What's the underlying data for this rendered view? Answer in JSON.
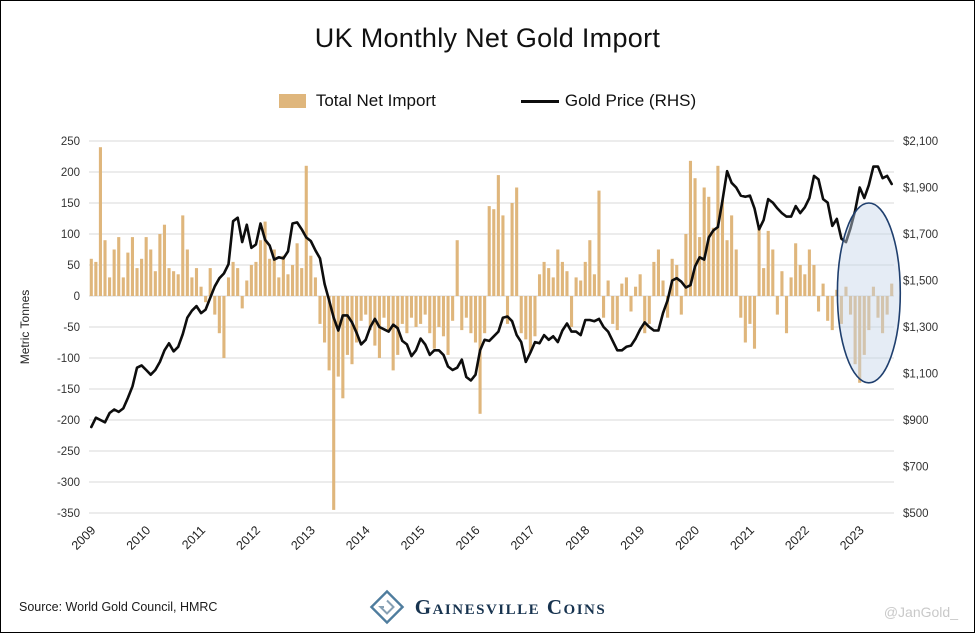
{
  "page": {
    "title": "UK Monthly Net Gold Import",
    "source": "Source: World Gold Council, HMRC",
    "watermark": "@JanGold_",
    "brand": "Gainesville Coins"
  },
  "legend": {
    "bars_label": "Total Net Import",
    "line_label": "Gold Price (RHS)"
  },
  "colors": {
    "bar": "#dfb67c",
    "line": "#0d0d0d",
    "gridline": "#d9d9d9",
    "tick_text": "#333333",
    "ellipse_stroke": "#1f3f6e",
    "ellipse_fill": "rgba(197,213,232,0.45)"
  },
  "chart_data": {
    "type": "bar",
    "title": "UK Monthly Net Gold Import",
    "subtitle": "",
    "ylabel_left": "Metric Tonnes",
    "ylabel_right": "",
    "grid": true,
    "legend_position": "top",
    "start_month": "2009-01",
    "end_month": "2023-08",
    "x_tick_years": [
      "2009",
      "2010",
      "2011",
      "2012",
      "2013",
      "2014",
      "2015",
      "2016",
      "2017",
      "2018",
      "2019",
      "2020",
      "2021",
      "2022",
      "2023"
    ],
    "left_axis": {
      "min": -350,
      "max": 250,
      "ticks": [
        250,
        200,
        150,
        100,
        50,
        0,
        -50,
        -100,
        -150,
        -200,
        -250,
        -300,
        -350
      ]
    },
    "right_axis": {
      "min": 500,
      "max": 2100,
      "tick_labels": [
        "$2,100",
        "$1,900",
        "$1,700",
        "$1,500",
        "$1,300",
        "$1,100",
        "$900",
        "$700",
        "$500"
      ]
    },
    "series": [
      {
        "name": "Total Net Import",
        "type": "bar",
        "axis": "left",
        "color": "#dfb67c",
        "values": [
          60,
          55,
          240,
          90,
          30,
          75,
          95,
          30,
          70,
          95,
          45,
          60,
          95,
          75,
          40,
          100,
          115,
          45,
          40,
          35,
          130,
          75,
          30,
          45,
          15,
          -10,
          45,
          -30,
          -60,
          -100,
          30,
          55,
          45,
          -20,
          25,
          50,
          55,
          90,
          120,
          60,
          75,
          30,
          65,
          35,
          50,
          85,
          45,
          210,
          65,
          30,
          -45,
          -75,
          -120,
          -345,
          -130,
          -165,
          -95,
          -110,
          -75,
          -40,
          -30,
          -55,
          -80,
          -100,
          -35,
          -55,
          -120,
          -95,
          -45,
          -60,
          -35,
          -50,
          -45,
          -30,
          -60,
          -85,
          -50,
          -65,
          -95,
          -40,
          90,
          -55,
          -35,
          -60,
          -75,
          -190,
          -60,
          145,
          140,
          195,
          130,
          -45,
          150,
          175,
          -60,
          -70,
          -90,
          -65,
          35,
          55,
          45,
          30,
          75,
          55,
          40,
          -50,
          30,
          25,
          55,
          90,
          35,
          170,
          -35,
          25,
          -45,
          -55,
          20,
          30,
          -25,
          15,
          35,
          -60,
          -45,
          55,
          75,
          25,
          -35,
          60,
          50,
          -30,
          100,
          218,
          190,
          95,
          175,
          160,
          110,
          210,
          155,
          90,
          130,
          75,
          -35,
          -75,
          -45,
          -85,
          110,
          45,
          105,
          75,
          -30,
          40,
          -60,
          30,
          85,
          50,
          35,
          75,
          50,
          -25,
          20,
          -40,
          -55,
          10,
          -45,
          15,
          -30,
          -110,
          -140,
          -95,
          -55,
          15,
          -35,
          -60,
          -30,
          20
        ]
      },
      {
        "name": "Gold Price (RHS)",
        "type": "line",
        "axis": "right",
        "color": "#0d0d0d",
        "values": [
          870,
          910,
          900,
          890,
          930,
          945,
          935,
          950,
          995,
          1045,
          1125,
          1135,
          1115,
          1095,
          1115,
          1150,
          1200,
          1230,
          1195,
          1215,
          1270,
          1340,
          1370,
          1390,
          1360,
          1375,
          1425,
          1475,
          1510,
          1530,
          1570,
          1755,
          1770,
          1665,
          1740,
          1640,
          1655,
          1745,
          1675,
          1650,
          1590,
          1600,
          1595,
          1625,
          1745,
          1750,
          1720,
          1685,
          1670,
          1630,
          1595,
          1485,
          1415,
          1340,
          1285,
          1350,
          1350,
          1320,
          1275,
          1225,
          1245,
          1300,
          1335,
          1300,
          1290,
          1280,
          1310,
          1295,
          1240,
          1225,
          1175,
          1200,
          1250,
          1225,
          1180,
          1200,
          1200,
          1180,
          1130,
          1115,
          1125,
          1160,
          1085,
          1070,
          1095,
          1200,
          1245,
          1240,
          1260,
          1280,
          1340,
          1345,
          1325,
          1265,
          1235,
          1150,
          1190,
          1235,
          1230,
          1265,
          1245,
          1260,
          1235,
          1285,
          1315,
          1280,
          1280,
          1265,
          1330,
          1330,
          1325,
          1335,
          1300,
          1280,
          1240,
          1200,
          1200,
          1215,
          1220,
          1250,
          1290,
          1320,
          1300,
          1285,
          1285,
          1360,
          1415,
          1500,
          1510,
          1495,
          1470,
          1480,
          1560,
          1600,
          1590,
          1685,
          1715,
          1730,
          1845,
          1970,
          1920,
          1900,
          1865,
          1860,
          1865,
          1810,
          1720,
          1760,
          1850,
          1835,
          1810,
          1790,
          1775,
          1775,
          1820,
          1790,
          1815,
          1855,
          1950,
          1935,
          1850,
          1835,
          1735,
          1765,
          1680,
          1665,
          1725,
          1800,
          1900,
          1855,
          1910,
          1990,
          1990,
          1940,
          1950,
          1915
        ]
      }
    ],
    "highlight_ellipse": {
      "description": "circled recent outflow period late 2022 through 2023",
      "start_month_index": 164,
      "end_month_index": 176,
      "top_tonnes": 150,
      "bottom_tonnes": -140
    }
  }
}
